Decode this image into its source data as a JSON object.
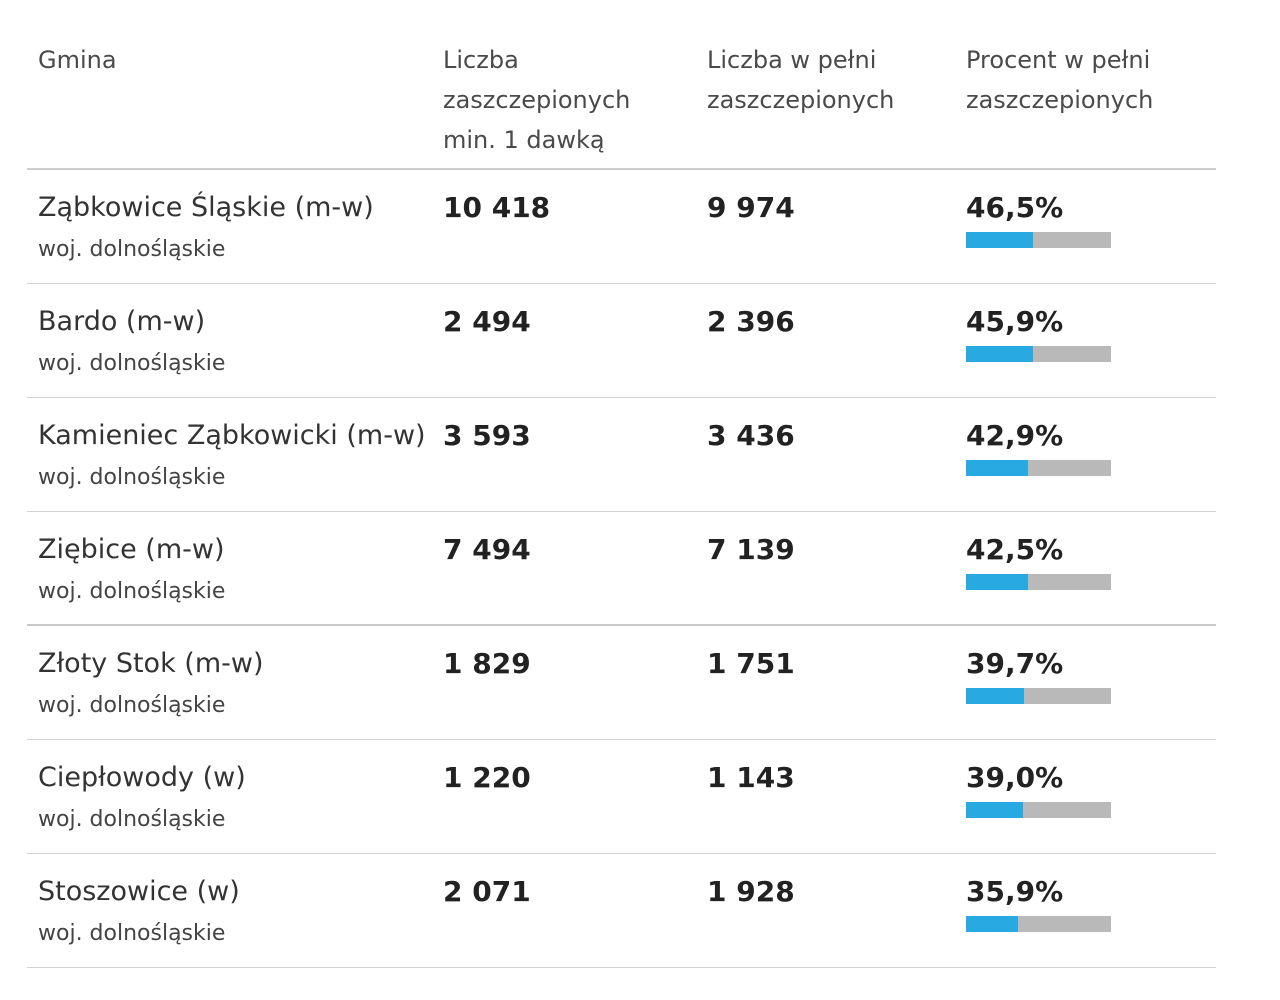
{
  "table": {
    "headers": {
      "gmina": "Gmina",
      "min1": "Liczba zaszczepionych min. 1 dawką",
      "full": "Liczba w pełni zaszczepionych",
      "percent": "Procent w pełni zaszczepionych"
    },
    "colors": {
      "bar_fill": "#29a9e1",
      "bar_track": "#b9b9b9"
    },
    "rows": [
      {
        "name": "Ząbkowice Śląskie (m-w)",
        "region": "woj. dolnośląskie",
        "min1": "10 418",
        "full": "9 974",
        "percent": "46,5%",
        "fraction": 0.465
      },
      {
        "name": "Bardo (m-w)",
        "region": "woj. dolnośląskie",
        "min1": "2 494",
        "full": "2 396",
        "percent": "45,9%",
        "fraction": 0.459
      },
      {
        "name": "Kamieniec Ząbkowicki (m-w)",
        "region": "woj. dolnośląskie",
        "min1": "3 593",
        "full": "3 436",
        "percent": "42,9%",
        "fraction": 0.429
      },
      {
        "name": "Ziębice (m-w)",
        "region": "woj. dolnośląskie",
        "min1": "7 494",
        "full": "7 139",
        "percent": "42,5%",
        "fraction": 0.425
      },
      {
        "name": "Złoty Stok (m-w)",
        "region": "woj. dolnośląskie",
        "min1": "1 829",
        "full": "1 751",
        "percent": "39,7%",
        "fraction": 0.397
      },
      {
        "name": "Ciepłowody (w)",
        "region": "woj. dolnośląskie",
        "min1": "1 220",
        "full": "1 143",
        "percent": "39,0%",
        "fraction": 0.39
      },
      {
        "name": "Stoszowice (w)",
        "region": "woj. dolnośląskie",
        "min1": "2 071",
        "full": "1 928",
        "percent": "35,9%",
        "fraction": 0.359
      }
    ]
  }
}
